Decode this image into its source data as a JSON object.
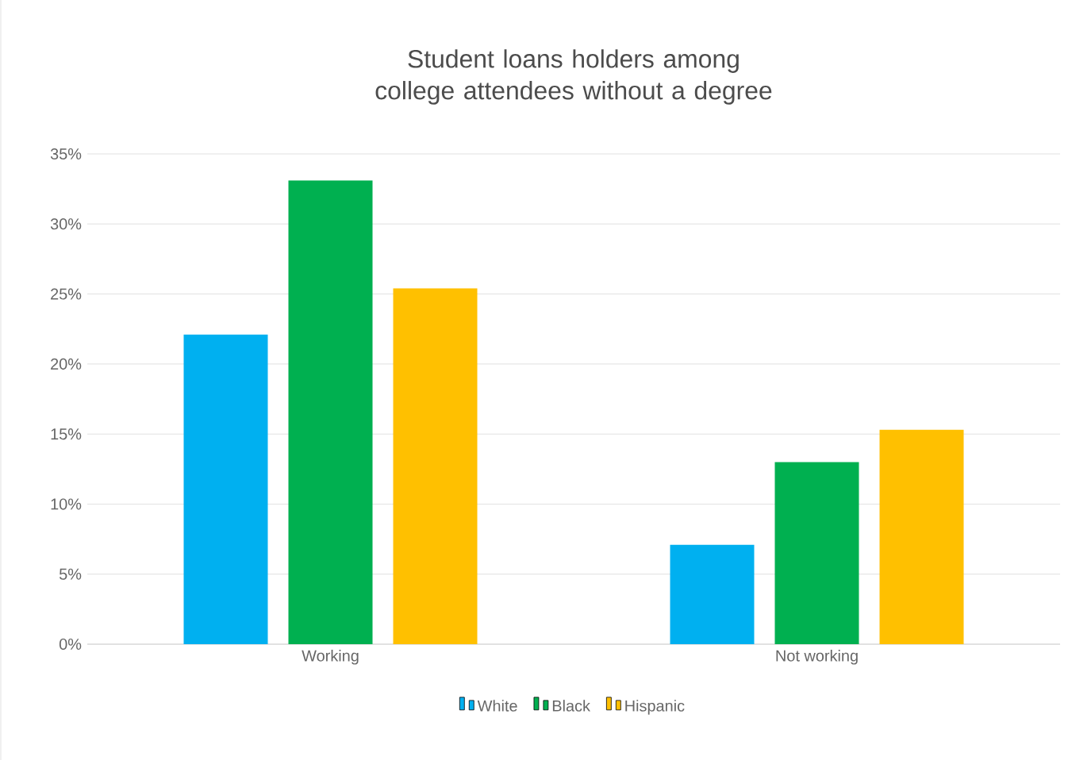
{
  "chart_data": {
    "type": "bar",
    "title": "Student loans holders among college attendees without a degree",
    "categories": [
      "Working",
      "Not working"
    ],
    "series": [
      {
        "name": "White",
        "color": "#00b0f0",
        "values": [
          22.1,
          7.1
        ]
      },
      {
        "name": "Black",
        "color": "#00b050",
        "values": [
          33.1,
          13.0
        ]
      },
      {
        "name": "Hispanic",
        "color": "#ffc000",
        "values": [
          25.4,
          15.3
        ]
      }
    ],
    "ylim": [
      0,
      35
    ],
    "yticks": [
      {
        "value": 0,
        "label": "0%"
      },
      {
        "value": 5,
        "label": "5%"
      },
      {
        "value": 10,
        "label": "10%"
      },
      {
        "value": 15,
        "label": "15%"
      },
      {
        "value": 20,
        "label": "20%"
      },
      {
        "value": 25,
        "label": "25%"
      },
      {
        "value": 30,
        "label": "30%"
      },
      {
        "value": 35,
        "label": "35%"
      }
    ],
    "grid": "y",
    "legend": "bottom"
  }
}
